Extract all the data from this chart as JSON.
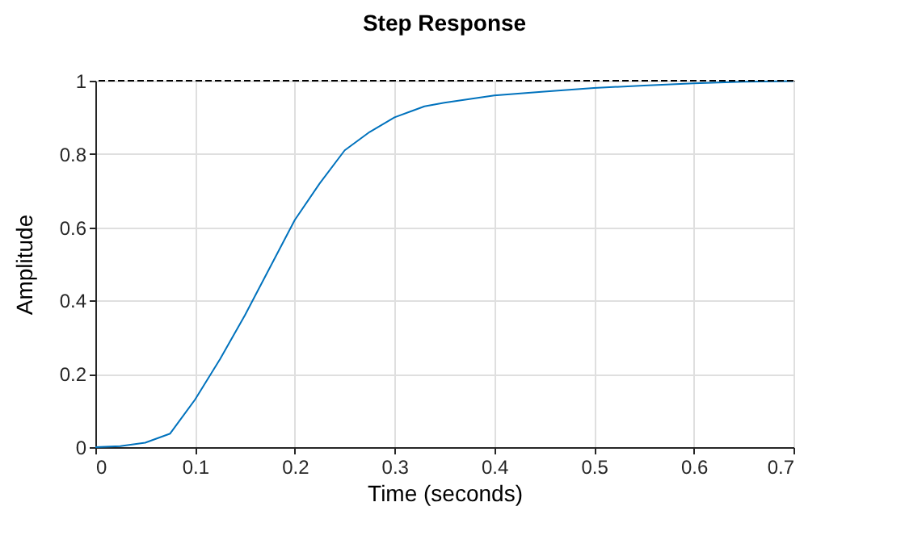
{
  "chart_data": {
    "type": "line",
    "title": "Step Response",
    "xlabel": "Time (seconds)",
    "ylabel": "Amplitude",
    "x": [
      0,
      0.025,
      0.05,
      0.075,
      0.1,
      0.125,
      0.15,
      0.175,
      0.2,
      0.225,
      0.25,
      0.275,
      0.3,
      0.33,
      0.35,
      0.4,
      0.45,
      0.5,
      0.55,
      0.6,
      0.65,
      0.7
    ],
    "series": [
      {
        "color": "#0072bd",
        "values": [
          0,
          0.003,
          0.012,
          0.037,
          0.13,
          0.24,
          0.36,
          0.49,
          0.62,
          0.72,
          0.81,
          0.86,
          0.9,
          0.93,
          0.94,
          0.96,
          0.97,
          0.98,
          0.987,
          0.993,
          0.997,
          0.999
        ]
      }
    ],
    "xlim": [
      0,
      0.7
    ],
    "xticks": [
      0,
      0.1,
      0.2,
      0.3,
      0.4,
      0.5,
      0.6,
      0.7
    ],
    "ylim": [
      0,
      1
    ],
    "yticks": [
      0,
      0.2,
      0.4,
      0.6,
      0.8,
      1
    ],
    "ref_lines": [
      {
        "axis": "y",
        "value": 1,
        "color": "#000000",
        "line_style": "dashed"
      }
    ],
    "grid": true
  }
}
